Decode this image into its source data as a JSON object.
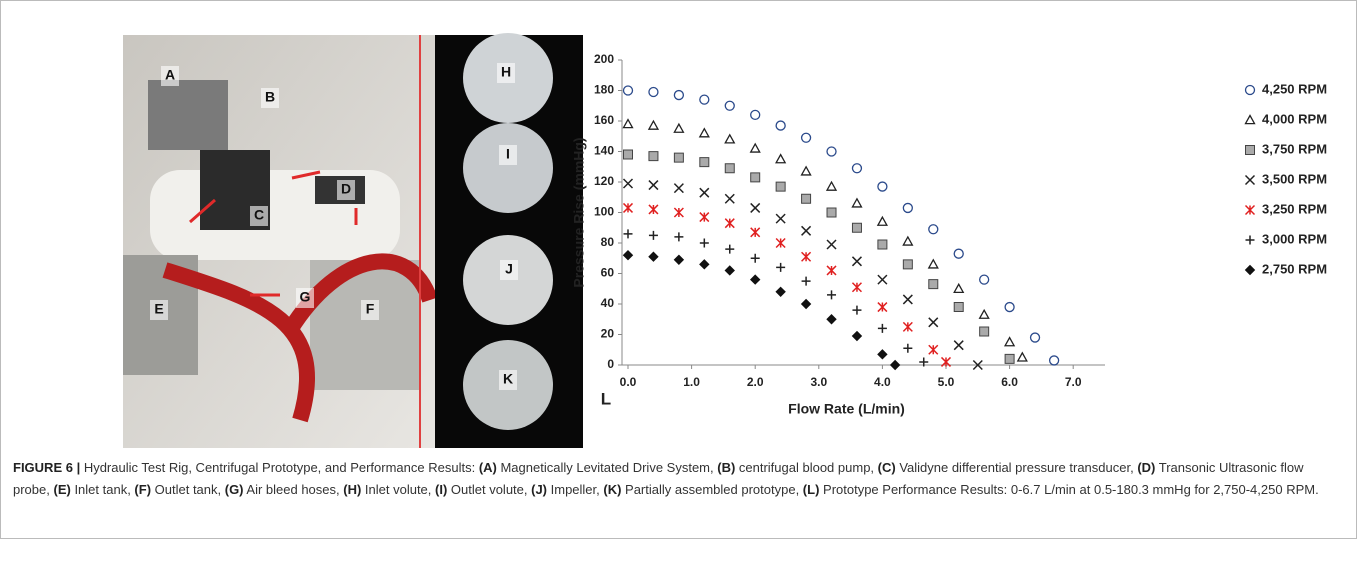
{
  "photo": {
    "labels": [
      "A",
      "B",
      "C",
      "D",
      "E",
      "F",
      "G",
      "H",
      "I",
      "J",
      "K"
    ]
  },
  "chart_data": {
    "type": "scatter",
    "panel_label": "L",
    "x_label": "Flow Rate (L/min)",
    "y_label": "Pressure Rise (mmHg)",
    "xlim": [
      0,
      7.5
    ],
    "ylim": [
      0,
      200
    ],
    "xticks": [
      {
        "value": 0,
        "label": "0.0"
      },
      {
        "value": 1,
        "label": "1.0"
      },
      {
        "value": 2,
        "label": "2.0"
      },
      {
        "value": 3,
        "label": "3.0"
      },
      {
        "value": 4,
        "label": "4.0"
      },
      {
        "value": 5,
        "label": "5.0"
      },
      {
        "value": 6,
        "label": "6.0"
      },
      {
        "value": 7,
        "label": "7.0"
      }
    ],
    "yticks": [
      0,
      20,
      40,
      60,
      80,
      100,
      120,
      140,
      160,
      180,
      200
    ],
    "legend": "upper right",
    "series": [
      {
        "name": "4,250 RPM",
        "color": "#2b4a8b",
        "marker": "circle",
        "x": [
          0,
          0.4,
          0.8,
          1.2,
          1.6,
          2.0,
          2.4,
          2.8,
          3.2,
          3.6,
          4.0,
          4.4,
          4.8,
          5.2,
          5.6,
          6.0,
          6.4,
          6.7
        ],
        "values": [
          180,
          179,
          177,
          174,
          170,
          164,
          157,
          149,
          140,
          129,
          117,
          103,
          89,
          73,
          56,
          38,
          18,
          3
        ]
      },
      {
        "name": "4,000 RPM",
        "color": "#222222",
        "marker": "triangle",
        "x": [
          0,
          0.4,
          0.8,
          1.2,
          1.6,
          2.0,
          2.4,
          2.8,
          3.2,
          3.6,
          4.0,
          4.4,
          4.8,
          5.2,
          5.6,
          6.0,
          6.2
        ],
        "values": [
          158,
          157,
          155,
          152,
          148,
          142,
          135,
          127,
          117,
          106,
          94,
          81,
          66,
          50,
          33,
          15,
          5
        ]
      },
      {
        "name": "3,750 RPM",
        "color": "#444444",
        "marker": "square",
        "x": [
          0,
          0.4,
          0.8,
          1.2,
          1.6,
          2.0,
          2.4,
          2.8,
          3.2,
          3.6,
          4.0,
          4.4,
          4.8,
          5.2,
          5.6,
          6.0
        ],
        "values": [
          138,
          137,
          136,
          133,
          129,
          123,
          117,
          109,
          100,
          90,
          79,
          66,
          53,
          38,
          22,
          4
        ]
      },
      {
        "name": "3,500 RPM",
        "color": "#222222",
        "marker": "x",
        "x": [
          0,
          0.4,
          0.8,
          1.2,
          1.6,
          2.0,
          2.4,
          2.8,
          3.2,
          3.6,
          4.0,
          4.4,
          4.8,
          5.2,
          5.5
        ],
        "values": [
          119,
          118,
          116,
          113,
          109,
          103,
          96,
          88,
          79,
          68,
          56,
          43,
          28,
          13,
          0
        ]
      },
      {
        "name": "3,250 RPM",
        "color": "#e02020",
        "marker": "asterisk",
        "x": [
          0,
          0.4,
          0.8,
          1.2,
          1.6,
          2.0,
          2.4,
          2.8,
          3.2,
          3.6,
          4.0,
          4.4,
          4.8,
          5.0
        ],
        "values": [
          103,
          102,
          100,
          97,
          93,
          87,
          80,
          71,
          62,
          51,
          38,
          25,
          10,
          2
        ]
      },
      {
        "name": "3,000 RPM",
        "color": "#222222",
        "marker": "plus",
        "x": [
          0,
          0.4,
          0.8,
          1.2,
          1.6,
          2.0,
          2.4,
          2.8,
          3.2,
          3.6,
          4.0,
          4.4,
          4.65
        ],
        "values": [
          86,
          85,
          84,
          80,
          76,
          70,
          64,
          55,
          46,
          36,
          24,
          11,
          2
        ]
      },
      {
        "name": "2,750 RPM",
        "color": "#111111",
        "marker": "diamond",
        "x": [
          0,
          0.4,
          0.8,
          1.2,
          1.6,
          2.0,
          2.4,
          2.8,
          3.2,
          3.6,
          4.0,
          4.2
        ],
        "values": [
          72,
          71,
          69,
          66,
          62,
          56,
          48,
          40,
          30,
          19,
          7,
          0
        ]
      }
    ]
  },
  "caption": {
    "figure": "FIGURE 6 |",
    "lead": " Hydraulic Test Rig, Centrifugal Prototype, and Performance Results: ",
    "parts": [
      {
        "label": "(A)",
        "text": " Magnetically Levitated Drive System, "
      },
      {
        "label": "(B)",
        "text": " centrifugal blood pump, "
      },
      {
        "label": "(C)",
        "text": " Validyne differential pressure transducer, "
      },
      {
        "label": "(D)",
        "text": " Transonic Ultrasonic flow probe, "
      },
      {
        "label": "(E)",
        "text": " Inlet tank, "
      },
      {
        "label": "(F)",
        "text": " Outlet tank, "
      },
      {
        "label": "(G)",
        "text": " Air bleed hoses, "
      },
      {
        "label": "(H)",
        "text": " Inlet volute, "
      },
      {
        "label": "(I)",
        "text": " Outlet volute, "
      },
      {
        "label": "(J)",
        "text": " Impeller, "
      },
      {
        "label": "(K)",
        "text": " Partially assembled prototype, "
      },
      {
        "label": "(L)",
        "text": " Prototype Performance Results: 0-6.7 L/min at 0.5-180.3 mmHg for 2,750-4,250 RPM."
      }
    ]
  }
}
